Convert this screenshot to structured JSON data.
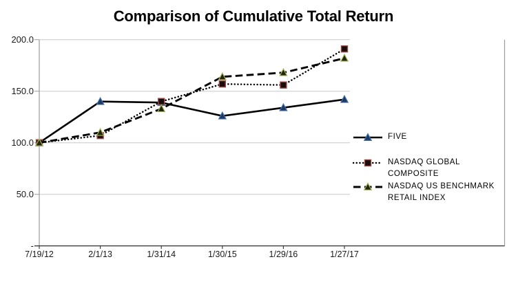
{
  "title": "Comparison of Cumulative Total Return",
  "chart_data": {
    "type": "line",
    "x": [
      "7/19/12",
      "2/1/13",
      "1/31/14",
      "1/30/15",
      "1/29/16",
      "1/27/17"
    ],
    "series": [
      {
        "name": "FIVE",
        "values": [
          100,
          140,
          139,
          126,
          134,
          142
        ],
        "line_style": "solid",
        "line_color": "#000000",
        "marker": "triangle",
        "marker_fill": "#1F3864",
        "marker_stroke": "#4472A8"
      },
      {
        "name": "NASDAQ GLOBAL COMPOSITE",
        "values": [
          100,
          107,
          140,
          157,
          156,
          191
        ],
        "line_style": "dotted",
        "line_color": "#000000",
        "marker": "square",
        "marker_fill": "#1A0D0D",
        "marker_stroke": "#9C4A46"
      },
      {
        "name": "NASDAQ US BENCHMARK RETAIL INDEX",
        "values": [
          100,
          110,
          133,
          164,
          168,
          182
        ],
        "line_style": "dashed",
        "line_color": "#000000",
        "marker": "triangle",
        "marker_fill": "#23260C",
        "marker_stroke": "#A9B85C"
      }
    ],
    "title": "Comparison of Cumulative Total Return",
    "xlabel": "",
    "ylabel": "",
    "ylim": [
      0,
      200
    ],
    "yticks": [
      {
        "value": 200,
        "label": "200.0"
      },
      {
        "value": 150,
        "label": "150.0"
      },
      {
        "value": 100,
        "label": "100.0"
      },
      {
        "value": 50,
        "label": "50.0"
      },
      {
        "value": 0,
        "label": "-"
      }
    ],
    "grid": true,
    "legend_position": "right"
  },
  "colors": {
    "background": "#FFFFFF",
    "gridline": "#C9C9C9",
    "axis_gray": "#9B9B9B",
    "axis_dark": "#3F3F3F",
    "text": "#1A1A1A"
  }
}
